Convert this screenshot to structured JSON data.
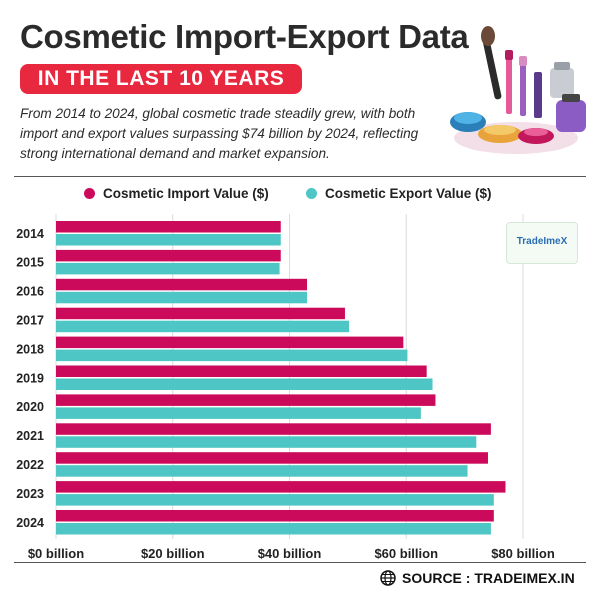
{
  "header": {
    "title": "Cosmetic Import-Export Data",
    "badge": "IN THE LAST 10 YEARS",
    "description": "From 2014 to 2024, global cosmetic trade steadily grew, with both import and export values surpassing $74 billion by 2024, reflecting strong international demand and market expansion."
  },
  "watermark": {
    "text": "TradeImeX"
  },
  "footer": {
    "source": "SOURCE : TRADEIMEX.IN"
  },
  "icons": {
    "hero": "cosmetics-illustration",
    "globe": "globe-icon"
  },
  "colors": {
    "import": "#cc0a5b",
    "export": "#4ec6c6",
    "badge": "#e8283f"
  },
  "chart_data": {
    "type": "bar",
    "orientation": "horizontal",
    "categories": [
      "2014",
      "2015",
      "2016",
      "2017",
      "2018",
      "2019",
      "2020",
      "2021",
      "2022",
      "2023",
      "2024"
    ],
    "series": [
      {
        "name": "Cosmetic Import Value ($)",
        "values": [
          38.5,
          38.5,
          43,
          49.5,
          59.5,
          63.5,
          65,
          74.5,
          74,
          77,
          75
        ]
      },
      {
        "name": "Cosmetic Export Value ($)",
        "values": [
          38.5,
          38.3,
          43,
          50.2,
          60.2,
          64.5,
          62.5,
          72,
          70.5,
          75,
          74.5
        ]
      }
    ],
    "xlim": [
      0,
      80
    ],
    "ticks": [
      "$0 billion",
      "$20 billion",
      "$40 billion",
      "$60 billion",
      "$80 billion"
    ],
    "tick_values": [
      0,
      20,
      40,
      60,
      80
    ],
    "grid": true,
    "legend": "top"
  }
}
